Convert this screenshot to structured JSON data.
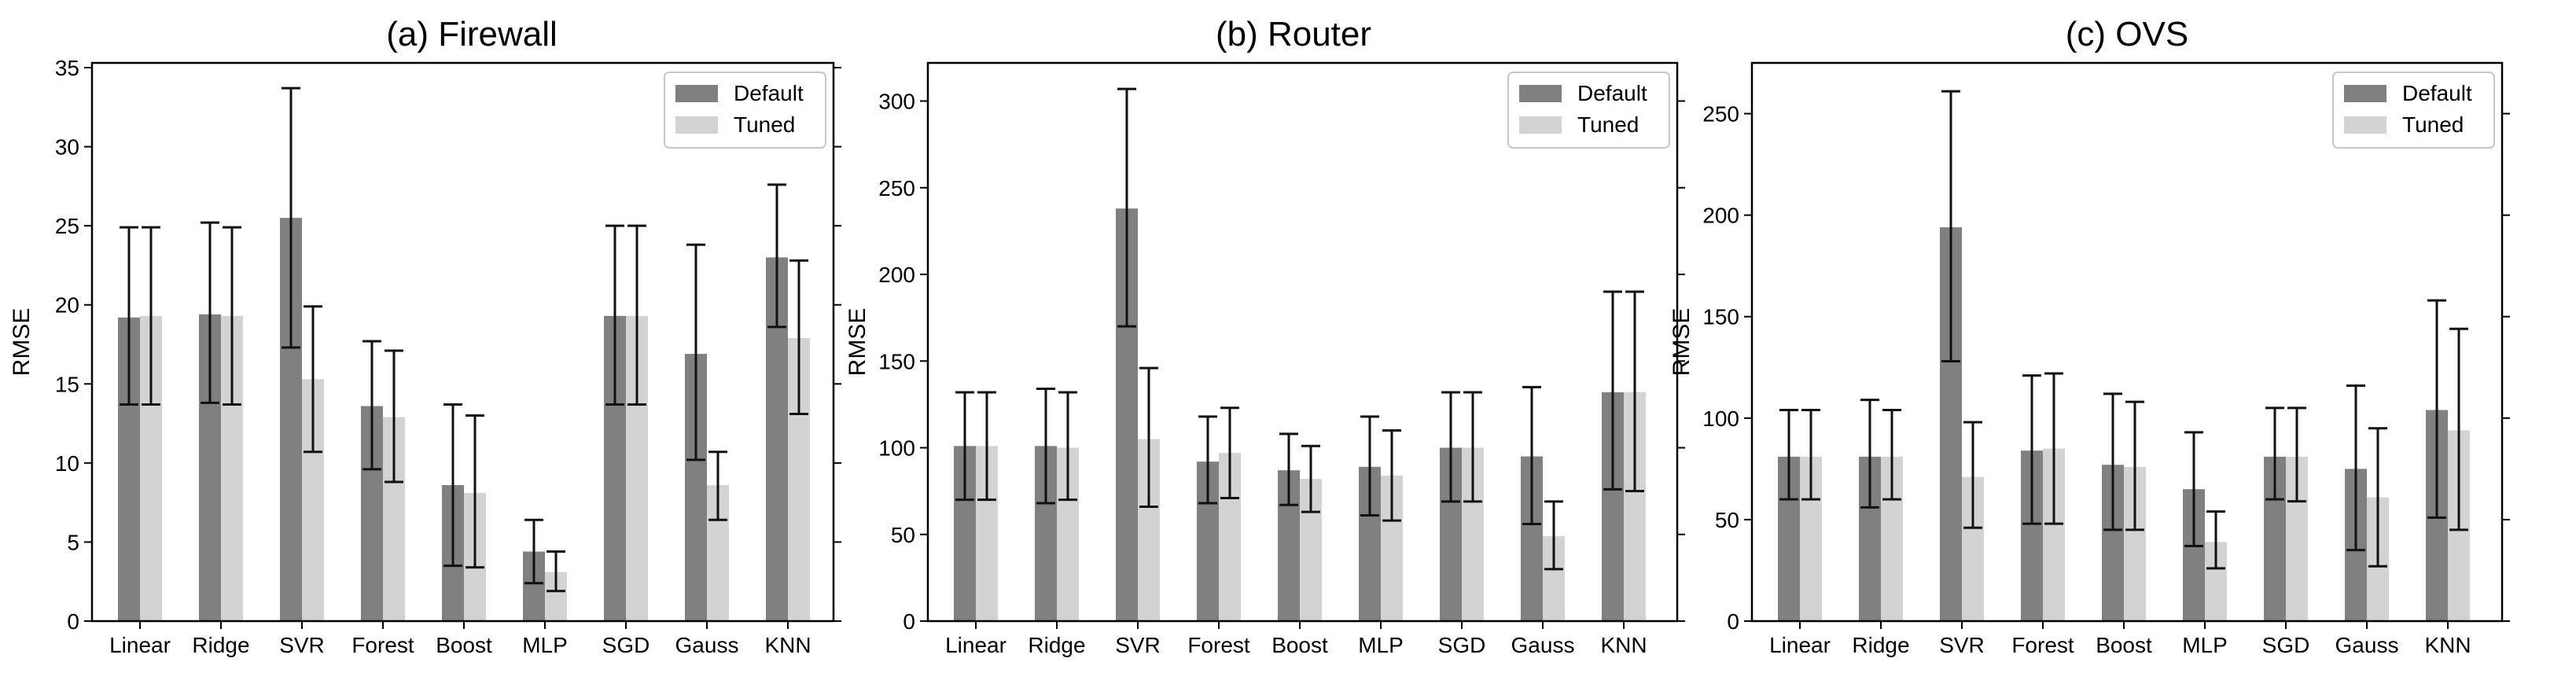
{
  "chart_data": [
    {
      "type": "bar",
      "title": "(a) Firewall",
      "ylabel": "RMSE",
      "xlabel": "",
      "ylim": [
        0,
        35.3
      ],
      "yticks": [
        0,
        5,
        10,
        15,
        20,
        25,
        30,
        35
      ],
      "categories": [
        "Linear",
        "Ridge",
        "SVR",
        "Forest",
        "Boost",
        "MLP",
        "SGD",
        "Gauss",
        "KNN"
      ],
      "legend": {
        "placement": "top-right",
        "entries": [
          "Default",
          "Tuned"
        ]
      },
      "series": [
        {
          "name": "Default",
          "color": "#808080",
          "values": [
            19.2,
            19.4,
            25.5,
            13.6,
            8.6,
            4.4,
            19.3,
            16.9,
            23.0
          ],
          "err_low": [
            13.7,
            13.8,
            17.3,
            9.6,
            3.5,
            2.4,
            13.7,
            10.2,
            18.6
          ],
          "err_high": [
            24.9,
            25.2,
            33.7,
            17.7,
            13.7,
            6.4,
            25.0,
            23.8,
            27.6
          ]
        },
        {
          "name": "Tuned",
          "color": "#d3d3d3",
          "values": [
            19.3,
            19.3,
            15.3,
            12.9,
            8.1,
            3.1,
            19.3,
            8.6,
            17.9
          ],
          "err_low": [
            13.7,
            13.7,
            10.7,
            8.8,
            3.4,
            1.9,
            13.7,
            6.4,
            13.1
          ],
          "err_high": [
            24.9,
            24.9,
            19.9,
            17.1,
            13.0,
            4.4,
            25.0,
            10.7,
            22.8
          ]
        }
      ]
    },
    {
      "type": "bar",
      "title": "(b) Router",
      "ylabel": "RMSE",
      "xlabel": "",
      "ylim": [
        0,
        322
      ],
      "yticks": [
        0,
        50,
        100,
        150,
        200,
        250,
        300
      ],
      "categories": [
        "Linear",
        "Ridge",
        "SVR",
        "Forest",
        "Boost",
        "MLP",
        "SGD",
        "Gauss",
        "KNN"
      ],
      "legend": {
        "placement": "top-right",
        "entries": [
          "Default",
          "Tuned"
        ]
      },
      "series": [
        {
          "name": "Default",
          "color": "#808080",
          "values": [
            101,
            101,
            238,
            92,
            87,
            89,
            100,
            95,
            132
          ],
          "err_low": [
            70,
            68,
            170,
            68,
            67,
            61,
            69,
            56,
            76
          ],
          "err_high": [
            132,
            134,
            307,
            118,
            108,
            118,
            132,
            135,
            190
          ]
        },
        {
          "name": "Tuned",
          "color": "#d3d3d3",
          "values": [
            101,
            100,
            105,
            97,
            82,
            84,
            100,
            49,
            132
          ],
          "err_low": [
            70,
            70,
            66,
            71,
            63,
            58,
            69,
            30,
            75
          ],
          "err_high": [
            132,
            132,
            146,
            123,
            101,
            110,
            132,
            69,
            190
          ]
        }
      ]
    },
    {
      "type": "bar",
      "title": "(c) OVS",
      "ylabel": "RMSE",
      "xlabel": "",
      "ylim": [
        0,
        275
      ],
      "yticks": [
        0,
        50,
        100,
        150,
        200,
        250
      ],
      "categories": [
        "Linear",
        "Ridge",
        "SVR",
        "Forest",
        "Boost",
        "MLP",
        "SGD",
        "Gauss",
        "KNN"
      ],
      "legend": {
        "placement": "top-right",
        "entries": [
          "Default",
          "Tuned"
        ]
      },
      "series": [
        {
          "name": "Default",
          "color": "#808080",
          "values": [
            81,
            81,
            194,
            84,
            77,
            65,
            81,
            75,
            104
          ],
          "err_low": [
            60,
            56,
            128,
            48,
            45,
            37,
            60,
            35,
            51
          ],
          "err_high": [
            104,
            109,
            261,
            121,
            112,
            93,
            105,
            116,
            158
          ]
        },
        {
          "name": "Tuned",
          "color": "#d3d3d3",
          "values": [
            81,
            81,
            71,
            85,
            76,
            39,
            81,
            61,
            94
          ],
          "err_low": [
            60,
            60,
            46,
            48,
            45,
            26,
            59,
            27,
            45
          ],
          "err_high": [
            104,
            104,
            98,
            122,
            108,
            54,
            105,
            95,
            144
          ]
        }
      ]
    }
  ]
}
